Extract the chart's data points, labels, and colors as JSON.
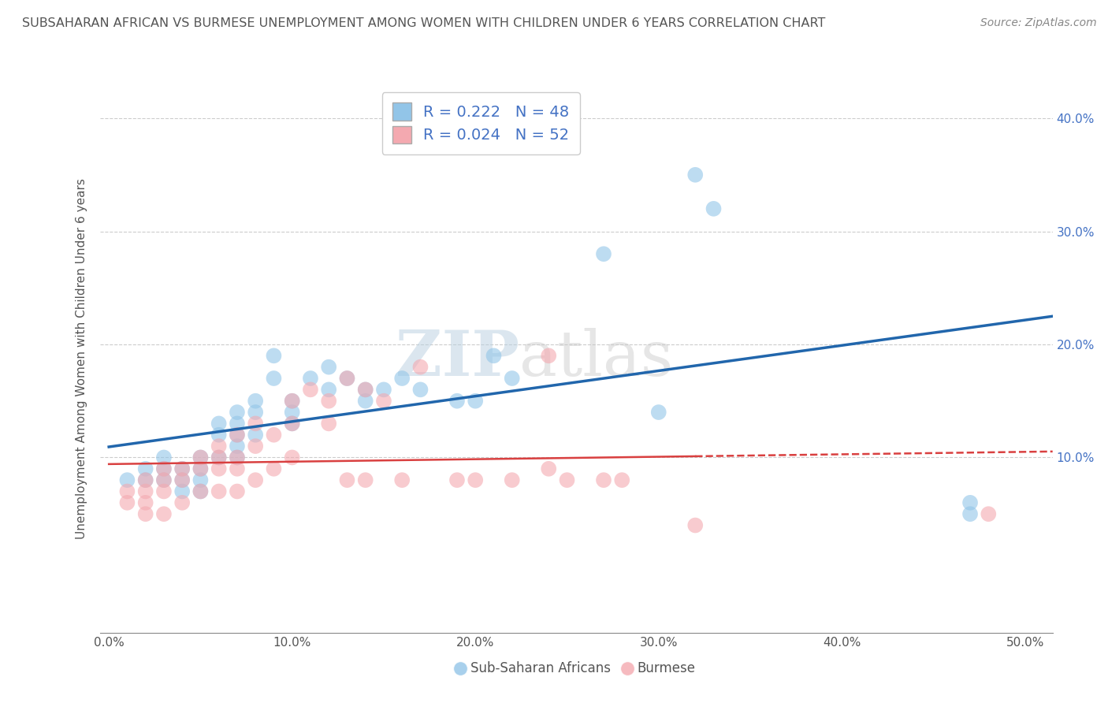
{
  "title": "SUBSAHARAN AFRICAN VS BURMESE UNEMPLOYMENT AMONG WOMEN WITH CHILDREN UNDER 6 YEARS CORRELATION CHART",
  "source": "Source: ZipAtlas.com",
  "ylabel": "Unemployment Among Women with Children Under 6 years",
  "xlabel_ticks": [
    "0.0%",
    "10.0%",
    "20.0%",
    "30.0%",
    "40.0%",
    "50.0%"
  ],
  "xlabel_vals": [
    0.0,
    0.1,
    0.2,
    0.3,
    0.4,
    0.5
  ],
  "ylabel_ticks": [
    "10.0%",
    "20.0%",
    "30.0%",
    "40.0%"
  ],
  "ylabel_vals": [
    0.1,
    0.2,
    0.3,
    0.4
  ],
  "right_ylabel_ticks": [
    "10.0%",
    "20.0%",
    "30.0%",
    "40.0%"
  ],
  "xlim": [
    -0.005,
    0.515
  ],
  "ylim": [
    -0.055,
    0.43
  ],
  "blue_R": 0.222,
  "blue_N": 48,
  "pink_R": 0.024,
  "pink_N": 52,
  "blue_color": "#92c5e8",
  "pink_color": "#f4a9b0",
  "blue_line_color": "#2166ac",
  "pink_line_color": "#d94040",
  "background_color": "#ffffff",
  "grid_color": "#cccccc",
  "title_color": "#555555",
  "watermark_zip": "ZIP",
  "watermark_atlas": "atlas",
  "blue_scatter_x": [
    0.01,
    0.02,
    0.02,
    0.03,
    0.03,
    0.03,
    0.04,
    0.04,
    0.04,
    0.05,
    0.05,
    0.05,
    0.05,
    0.06,
    0.06,
    0.06,
    0.07,
    0.07,
    0.07,
    0.07,
    0.07,
    0.08,
    0.08,
    0.08,
    0.09,
    0.09,
    0.1,
    0.1,
    0.1,
    0.11,
    0.12,
    0.12,
    0.13,
    0.14,
    0.14,
    0.15,
    0.16,
    0.17,
    0.19,
    0.2,
    0.21,
    0.22,
    0.27,
    0.3,
    0.32,
    0.33,
    0.47,
    0.47
  ],
  "blue_scatter_y": [
    0.08,
    0.09,
    0.08,
    0.08,
    0.09,
    0.1,
    0.09,
    0.08,
    0.07,
    0.09,
    0.1,
    0.08,
    0.07,
    0.13,
    0.12,
    0.1,
    0.14,
    0.13,
    0.12,
    0.11,
    0.1,
    0.15,
    0.14,
    0.12,
    0.19,
    0.17,
    0.15,
    0.14,
    0.13,
    0.17,
    0.18,
    0.16,
    0.17,
    0.16,
    0.15,
    0.16,
    0.17,
    0.16,
    0.15,
    0.15,
    0.19,
    0.17,
    0.28,
    0.14,
    0.35,
    0.32,
    0.06,
    0.05
  ],
  "pink_scatter_x": [
    0.01,
    0.01,
    0.02,
    0.02,
    0.02,
    0.02,
    0.03,
    0.03,
    0.03,
    0.03,
    0.04,
    0.04,
    0.04,
    0.05,
    0.05,
    0.05,
    0.06,
    0.06,
    0.06,
    0.06,
    0.07,
    0.07,
    0.07,
    0.07,
    0.08,
    0.08,
    0.08,
    0.09,
    0.09,
    0.1,
    0.1,
    0.1,
    0.11,
    0.12,
    0.12,
    0.13,
    0.13,
    0.14,
    0.14,
    0.15,
    0.16,
    0.17,
    0.19,
    0.2,
    0.22,
    0.24,
    0.24,
    0.25,
    0.27,
    0.28,
    0.32,
    0.48
  ],
  "pink_scatter_y": [
    0.07,
    0.06,
    0.08,
    0.07,
    0.06,
    0.05,
    0.09,
    0.08,
    0.07,
    0.05,
    0.09,
    0.08,
    0.06,
    0.1,
    0.09,
    0.07,
    0.11,
    0.1,
    0.09,
    0.07,
    0.12,
    0.1,
    0.09,
    0.07,
    0.13,
    0.11,
    0.08,
    0.12,
    0.09,
    0.15,
    0.13,
    0.1,
    0.16,
    0.15,
    0.13,
    0.17,
    0.08,
    0.16,
    0.08,
    0.15,
    0.08,
    0.18,
    0.08,
    0.08,
    0.08,
    0.19,
    0.09,
    0.08,
    0.08,
    0.08,
    0.04,
    0.05
  ]
}
